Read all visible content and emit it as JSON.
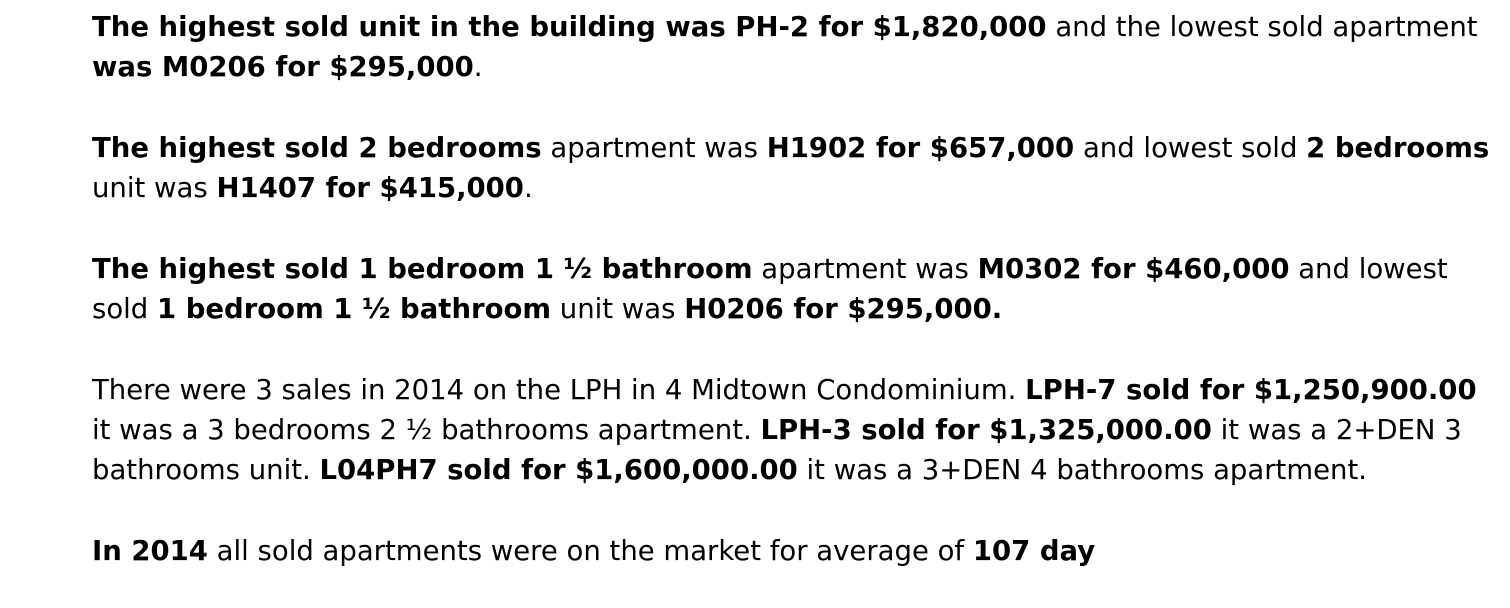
{
  "paragraphs": [
    {
      "runs": [
        {
          "text": "The highest sold unit in the building was PH-2 for $1,820,000",
          "bold": true
        },
        {
          "text": " and the lowest sold apartment ",
          "bold": false
        },
        {
          "text": "was M0206 for $295,000",
          "bold": true
        },
        {
          "text": ".",
          "bold": false
        }
      ]
    },
    {
      "runs": [
        {
          "text": "The highest sold 2 bedrooms",
          "bold": true
        },
        {
          "text": " apartment was ",
          "bold": false
        },
        {
          "text": "H1902 for $657,000",
          "bold": true
        },
        {
          "text": " and lowest sold ",
          "bold": false
        },
        {
          "text": "2 bedrooms",
          "bold": true
        },
        {
          "text": " unit was ",
          "bold": false
        },
        {
          "text": "H1407 for $415,000",
          "bold": true
        },
        {
          "text": ".",
          "bold": false
        }
      ]
    },
    {
      "runs": [
        {
          "text": "The highest sold 1 bedroom 1 ½ bathroom",
          "bold": true
        },
        {
          "text": " apartment was ",
          "bold": false
        },
        {
          "text": "M0302 for $460,000",
          "bold": true
        },
        {
          "text": " and lowest sold ",
          "bold": false
        },
        {
          "text": "1 bedroom 1 ½ bathroom",
          "bold": true
        },
        {
          "text": " unit was ",
          "bold": false
        },
        {
          "text": "H0206 for $295,000.",
          "bold": true
        }
      ]
    },
    {
      "runs": [
        {
          "text": "There were 3 sales in 2014 on the LPH in 4 Midtown Condominium. ",
          "bold": false
        },
        {
          "text": "LPH-7 sold for $1,250,900.00",
          "bold": true
        },
        {
          "text": " it was a 3 bedrooms 2 ½ bathrooms apartment. ",
          "bold": false
        },
        {
          "text": "LPH-3 sold for $1,325,000.00",
          "bold": true
        },
        {
          "text": " it was a 2+DEN 3 bathrooms unit. ",
          "bold": false
        },
        {
          "text": "L04PH7 sold for $1,600,000.00",
          "bold": true
        },
        {
          "text": " it was a 3+DEN 4 bathrooms apartment.",
          "bold": false
        }
      ]
    },
    {
      "runs": [
        {
          "text": "In 2014",
          "bold": true
        },
        {
          "text": " all sold apartments were on the market for average of ",
          "bold": false
        },
        {
          "text": "107 day",
          "bold": true
        }
      ]
    }
  ]
}
